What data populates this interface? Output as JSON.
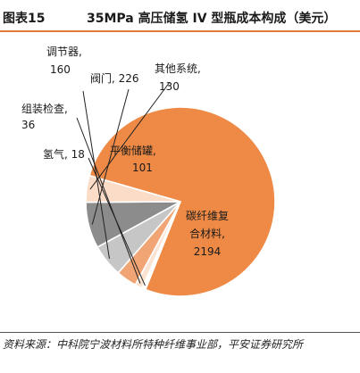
{
  "header": {
    "figure_number": "图表15",
    "title": "35MPa 高压储氢 IV 型瓶成本构成（美元）"
  },
  "footer": {
    "source": "资料来源：中科院宁波材料所特种纤维事业部，平安证券研究所"
  },
  "colors": {
    "accent": "#e07b3a"
  },
  "chart_data": {
    "type": "pie",
    "title": "35MPa 高压储氢 IV 型瓶成本构成（美元）",
    "unit": "美元",
    "slices": [
      {
        "name": "碳纤维复合材料",
        "value": 2194,
        "color": "#ee8a45",
        "label_lines": [
          "碳纤维复",
          "合材料,",
          "2194"
        ]
      },
      {
        "name": "氢气",
        "value": 18,
        "color": "#ffffff",
        "label_lines": [
          "氢气, 18"
        ]
      },
      {
        "name": "组装检查",
        "value": 36,
        "color": "#fbe3d2",
        "label_lines": [
          "组装检查,",
          "36"
        ]
      },
      {
        "name": "平衡储罐",
        "value": 101,
        "color": "#f1a574",
        "label_lines": [
          "平衡储罐,",
          "101"
        ]
      },
      {
        "name": "调节器",
        "value": 160,
        "color": "#c6c6c6",
        "label_lines": [
          "调节器,",
          "160"
        ]
      },
      {
        "name": "阀门",
        "value": 226,
        "color": "#8c8c8c",
        "label_lines": [
          "阀门, 226"
        ]
      },
      {
        "name": "其他系统",
        "value": 130,
        "color": "#fbdcc7",
        "label_lines": [
          "其他系统,",
          "130"
        ]
      }
    ]
  }
}
